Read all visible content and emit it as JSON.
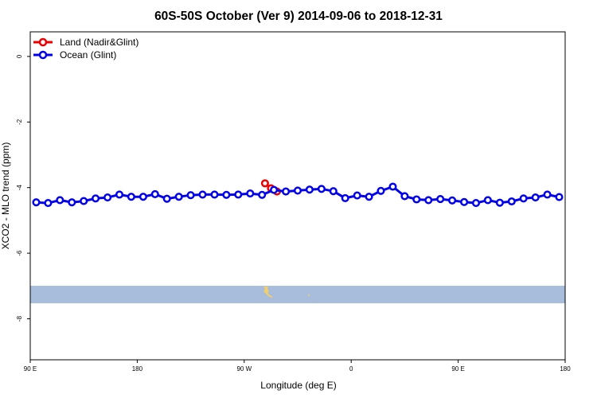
{
  "chart_data": {
    "type": "line",
    "title": "60S-50S October (Ver 9)   2014-09-06 to 2018-12-31",
    "xlabel": "Longitude (deg E)",
    "ylabel": "XCO2 - MLO trend (ppm)",
    "x_tick_labels": [
      "90 E",
      "180",
      "90 W",
      "0",
      "90 E",
      "180"
    ],
    "x_ticks": [
      90,
      180,
      270,
      360,
      450,
      540
    ],
    "xlim": [
      90,
      540
    ],
    "y_ticks": [
      0,
      -2,
      -4,
      -6,
      -8
    ],
    "y_tick_labels": [
      "0",
      "-2",
      "-4",
      "-6",
      "-8"
    ],
    "ylim": [
      -9.25,
      0.75
    ],
    "grid": false,
    "legend_position": "top-left",
    "colors": {
      "land": "#ee0000",
      "ocean": "#0000ee",
      "map_band": "#a8bddc",
      "landmass": "#f2cf6a"
    },
    "series": [
      {
        "name": "Land (Nadir&Glint)",
        "color": "#ee0000",
        "x": [
          287.5,
          292.5,
          297.5
        ],
        "y": [
          -3.87,
          -4.02,
          -4.12
        ]
      },
      {
        "name": "Ocean (Glint)",
        "color": "#0000ee",
        "x": [
          95,
          105,
          115,
          125,
          135,
          145,
          155,
          165,
          175,
          185,
          195,
          205,
          215,
          225,
          235,
          245,
          255,
          265,
          275,
          285,
          295,
          305,
          315,
          325,
          335,
          345,
          355,
          365,
          375,
          385,
          395,
          405,
          415,
          425,
          435,
          445,
          455,
          465,
          475,
          485,
          495,
          505,
          515,
          525,
          535
        ],
        "y": [
          -4.45,
          -4.47,
          -4.38,
          -4.45,
          -4.41,
          -4.33,
          -4.3,
          -4.21,
          -4.28,
          -4.28,
          -4.2,
          -4.34,
          -4.28,
          -4.23,
          -4.21,
          -4.21,
          -4.22,
          -4.21,
          -4.18,
          -4.22,
          -4.07,
          -4.12,
          -4.09,
          -4.06,
          -4.04,
          -4.11,
          -4.32,
          -4.24,
          -4.28,
          -4.1,
          -3.97,
          -4.26,
          -4.36,
          -4.38,
          -4.35,
          -4.39,
          -4.44,
          -4.47,
          -4.38,
          -4.46,
          -4.42,
          -4.33,
          -4.3,
          -4.21,
          -4.29
        ]
      }
    ]
  }
}
